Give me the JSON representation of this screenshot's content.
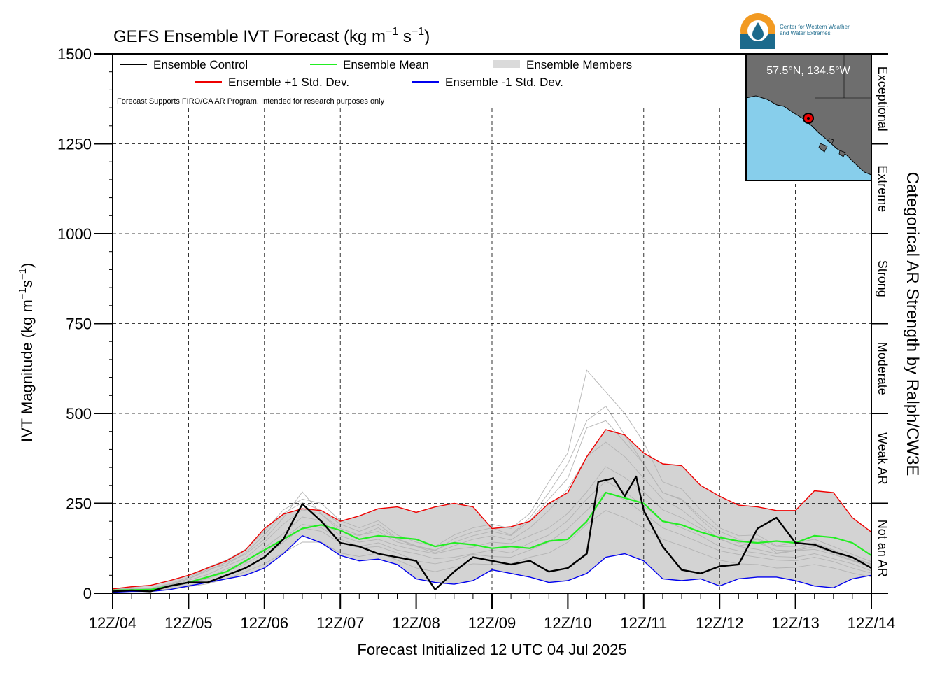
{
  "chart_data": {
    "type": "line",
    "title": "GEFS Ensemble IVT Forecast (kg m",
    "title_units_suffix": "−1 s−1)",
    "ylabel": "IVT Magnitude (kg m",
    "ylabel_suffix": "−1s−1)",
    "xlabel": "Forecast Initialized 12 UTC 04 Jul 2025",
    "right_axis_label": "Categorical AR Strength by Ralph/CW3E",
    "ylim": [
      0,
      1500
    ],
    "yticks": [
      "0",
      "250",
      "500",
      "750",
      "1000",
      "1250",
      "1500"
    ],
    "xticks": [
      "12Z/04",
      "12Z/05",
      "12Z/06",
      "12Z/07",
      "12Z/08",
      "12Z/09",
      "12Z/10",
      "12Z/11",
      "12Z/12",
      "12Z/13",
      "12Z/14"
    ],
    "x_days": [
      0,
      10
    ],
    "grid": true,
    "categories": [
      {
        "label": "Not an AR",
        "range": [
          0,
          250
        ]
      },
      {
        "label": "Weak AR",
        "range": [
          250,
          500
        ]
      },
      {
        "label": "Moderate",
        "range": [
          500,
          750
        ]
      },
      {
        "label": "Strong",
        "range": [
          750,
          1000
        ]
      },
      {
        "label": "Extreme",
        "range": [
          1000,
          1250
        ]
      },
      {
        "label": "Exceptional",
        "range": [
          1250,
          1500
        ]
      }
    ],
    "note": "Forecast Supports FIRO/CA AR Program. Intended for research purposes only",
    "legend": {
      "control": "Ensemble Control",
      "mean": "Ensemble Mean",
      "members": "Ensemble Members",
      "plus": "Ensemble +1 Std. Dev.",
      "minus": "Ensemble -1 Std. Dev."
    },
    "colors": {
      "control": "#000000",
      "mean": "#22ee22",
      "plus": "#ee0000",
      "minus": "#0000ee",
      "members": "#b4b4b4",
      "band": "#d3d3d3",
      "ocean": "#87ceeb",
      "land": "#6e6e6e"
    },
    "inset_location": "57.5°N, 134.5°W",
    "logo_text": [
      "Center for Western Weather",
      "and Water Extremes"
    ],
    "series": [
      {
        "name": "Ensemble Control",
        "x": [
          0,
          0.25,
          0.5,
          0.75,
          1,
          1.25,
          1.5,
          1.75,
          2,
          2.25,
          2.375,
          2.5,
          2.75,
          3,
          3.25,
          3.5,
          3.75,
          4,
          4.25,
          4.5,
          4.75,
          5,
          5.25,
          5.5,
          5.75,
          6,
          6.25,
          6.4,
          6.6,
          6.75,
          6.9,
          7,
          7.25,
          7.5,
          7.75,
          8,
          8.25,
          8.5,
          8.75,
          9,
          9.25,
          9.5,
          9.75,
          10
        ],
        "values": [
          5,
          8,
          5,
          20,
          30,
          30,
          50,
          70,
          100,
          150,
          200,
          248,
          200,
          140,
          130,
          110,
          100,
          90,
          10,
          60,
          100,
          90,
          80,
          90,
          60,
          70,
          110,
          310,
          320,
          270,
          325,
          230,
          130,
          65,
          55,
          75,
          80,
          180,
          210,
          140,
          135,
          115,
          100,
          70
        ]
      },
      {
        "name": "Ensemble Mean",
        "x": [
          0,
          0.5,
          1,
          1.5,
          2,
          2.5,
          2.75,
          3,
          3.25,
          3.5,
          3.75,
          4,
          4.25,
          4.5,
          4.75,
          5,
          5.25,
          5.5,
          5.75,
          6,
          6.25,
          6.5,
          6.75,
          7,
          7.25,
          7.5,
          7.75,
          8,
          8.25,
          8.5,
          8.75,
          9,
          9.25,
          9.5,
          9.75,
          10
        ],
        "values": [
          8,
          10,
          30,
          60,
          120,
          180,
          190,
          175,
          150,
          160,
          155,
          150,
          130,
          140,
          135,
          125,
          130,
          125,
          145,
          150,
          200,
          280,
          265,
          250,
          200,
          190,
          170,
          155,
          145,
          140,
          145,
          140,
          160,
          155,
          140,
          105
        ]
      },
      {
        "name": "Ensemble +1 Std. Dev.",
        "x": [
          0,
          0.25,
          0.5,
          0.75,
          1,
          1.25,
          1.5,
          1.75,
          2,
          2.25,
          2.5,
          2.75,
          3,
          3.25,
          3.5,
          3.75,
          4,
          4.25,
          4.5,
          4.75,
          5,
          5.25,
          5.5,
          5.75,
          6,
          6.25,
          6.5,
          6.75,
          7,
          7.25,
          7.5,
          7.75,
          8,
          8.25,
          8.5,
          8.75,
          9,
          9.25,
          9.5,
          9.75,
          10
        ],
        "values": [
          12,
          18,
          22,
          35,
          50,
          70,
          90,
          120,
          180,
          220,
          235,
          230,
          200,
          215,
          235,
          240,
          225,
          240,
          250,
          240,
          180,
          185,
          200,
          250,
          280,
          380,
          455,
          440,
          390,
          360,
          355,
          300,
          270,
          245,
          240,
          230,
          230,
          285,
          280,
          210,
          170
        ]
      },
      {
        "name": "Ensemble -1 Std. Dev.",
        "x": [
          0,
          0.25,
          0.5,
          0.75,
          1,
          1.25,
          1.5,
          1.75,
          2,
          2.25,
          2.5,
          2.75,
          3,
          3.25,
          3.5,
          3.75,
          4,
          4.25,
          4.5,
          4.75,
          5,
          5.25,
          5.5,
          5.75,
          6,
          6.25,
          6.5,
          6.75,
          7,
          7.25,
          7.5,
          7.75,
          8,
          8.25,
          8.5,
          8.75,
          9,
          9.25,
          9.5,
          9.75,
          10
        ],
        "values": [
          3,
          5,
          5,
          10,
          20,
          30,
          40,
          50,
          70,
          110,
          160,
          140,
          105,
          90,
          95,
          80,
          40,
          30,
          25,
          35,
          65,
          55,
          45,
          30,
          35,
          55,
          100,
          110,
          90,
          40,
          35,
          40,
          20,
          40,
          45,
          45,
          35,
          20,
          15,
          40,
          50
        ]
      }
    ],
    "members": [
      [
        8,
        14,
        12,
        24,
        40,
        62,
        86,
        108,
        150,
        210,
        282,
        220,
        172,
        160,
        182,
        150,
        130,
        118,
        152,
        170,
        182,
        162,
        210,
        280,
        360,
        480,
        520,
        440,
        360,
        280,
        260,
        205,
        160,
        140,
        150,
        112,
        120,
        138,
        120,
        98,
        80
      ],
      [
        6,
        10,
        8,
        18,
        30,
        42,
        68,
        86,
        126,
        166,
        212,
        202,
        160,
        142,
        150,
        132,
        120,
        110,
        122,
        128,
        142,
        138,
        160,
        182,
        222,
        282,
        352,
        322,
        282,
        232,
        210,
        180,
        152,
        130,
        122,
        110,
        118,
        122,
        108,
        90,
        72
      ],
      [
        4,
        8,
        6,
        12,
        22,
        32,
        50,
        70,
        102,
        142,
        182,
        172,
        140,
        126,
        130,
        112,
        90,
        82,
        92,
        108,
        102,
        100,
        120,
        142,
        180,
        230,
        282,
        260,
        222,
        182,
        162,
        140,
        118,
        108,
        100,
        92,
        90,
        100,
        88,
        70,
        56
      ],
      [
        10,
        16,
        14,
        26,
        44,
        72,
        92,
        122,
        172,
        232,
        262,
        250,
        202,
        182,
        202,
        162,
        142,
        130,
        162,
        182,
        192,
        180,
        222,
        310,
        390,
        620,
        560,
        500,
        420,
        310,
        290,
        232,
        182,
        160,
        162,
        132,
        140,
        150,
        130,
        108,
        88
      ],
      [
        5,
        9,
        7,
        16,
        28,
        40,
        60,
        82,
        112,
        152,
        192,
        182,
        150,
        130,
        140,
        120,
        110,
        96,
        100,
        110,
        120,
        112,
        140,
        162,
        202,
        262,
        312,
        282,
        242,
        202,
        182,
        160,
        130,
        118,
        112,
        102,
        100,
        110,
        96,
        82,
        62
      ],
      [
        7,
        12,
        10,
        20,
        36,
        52,
        76,
        98,
        142,
        192,
        232,
        220,
        180,
        162,
        172,
        142,
        130,
        112,
        132,
        150,
        160,
        148,
        182,
        230,
        290,
        380,
        420,
        380,
        320,
        262,
        232,
        190,
        150,
        132,
        140,
        120,
        118,
        130,
        112,
        92,
        76
      ],
      [
        3,
        6,
        5,
        10,
        18,
        26,
        40,
        60,
        82,
        112,
        142,
        142,
        112,
        102,
        112,
        92,
        70,
        60,
        72,
        82,
        80,
        82,
        100,
        112,
        142,
        192,
        230,
        210,
        182,
        150,
        132,
        112,
        92,
        82,
        80,
        70,
        72,
        80,
        70,
        56,
        46
      ],
      [
        9,
        15,
        13,
        22,
        40,
        66,
        80,
        112,
        162,
        222,
        252,
        230,
        192,
        172,
        192,
        152,
        132,
        120,
        142,
        160,
        172,
        160,
        202,
        262,
        320,
        460,
        480,
        420,
        360,
        280,
        262,
        212,
        172,
        150,
        152,
        130,
        130,
        140,
        120,
        100,
        82
      ]
    ]
  },
  "inset_text": {
    "coords_label": "57.5°N, 134.5°W"
  }
}
